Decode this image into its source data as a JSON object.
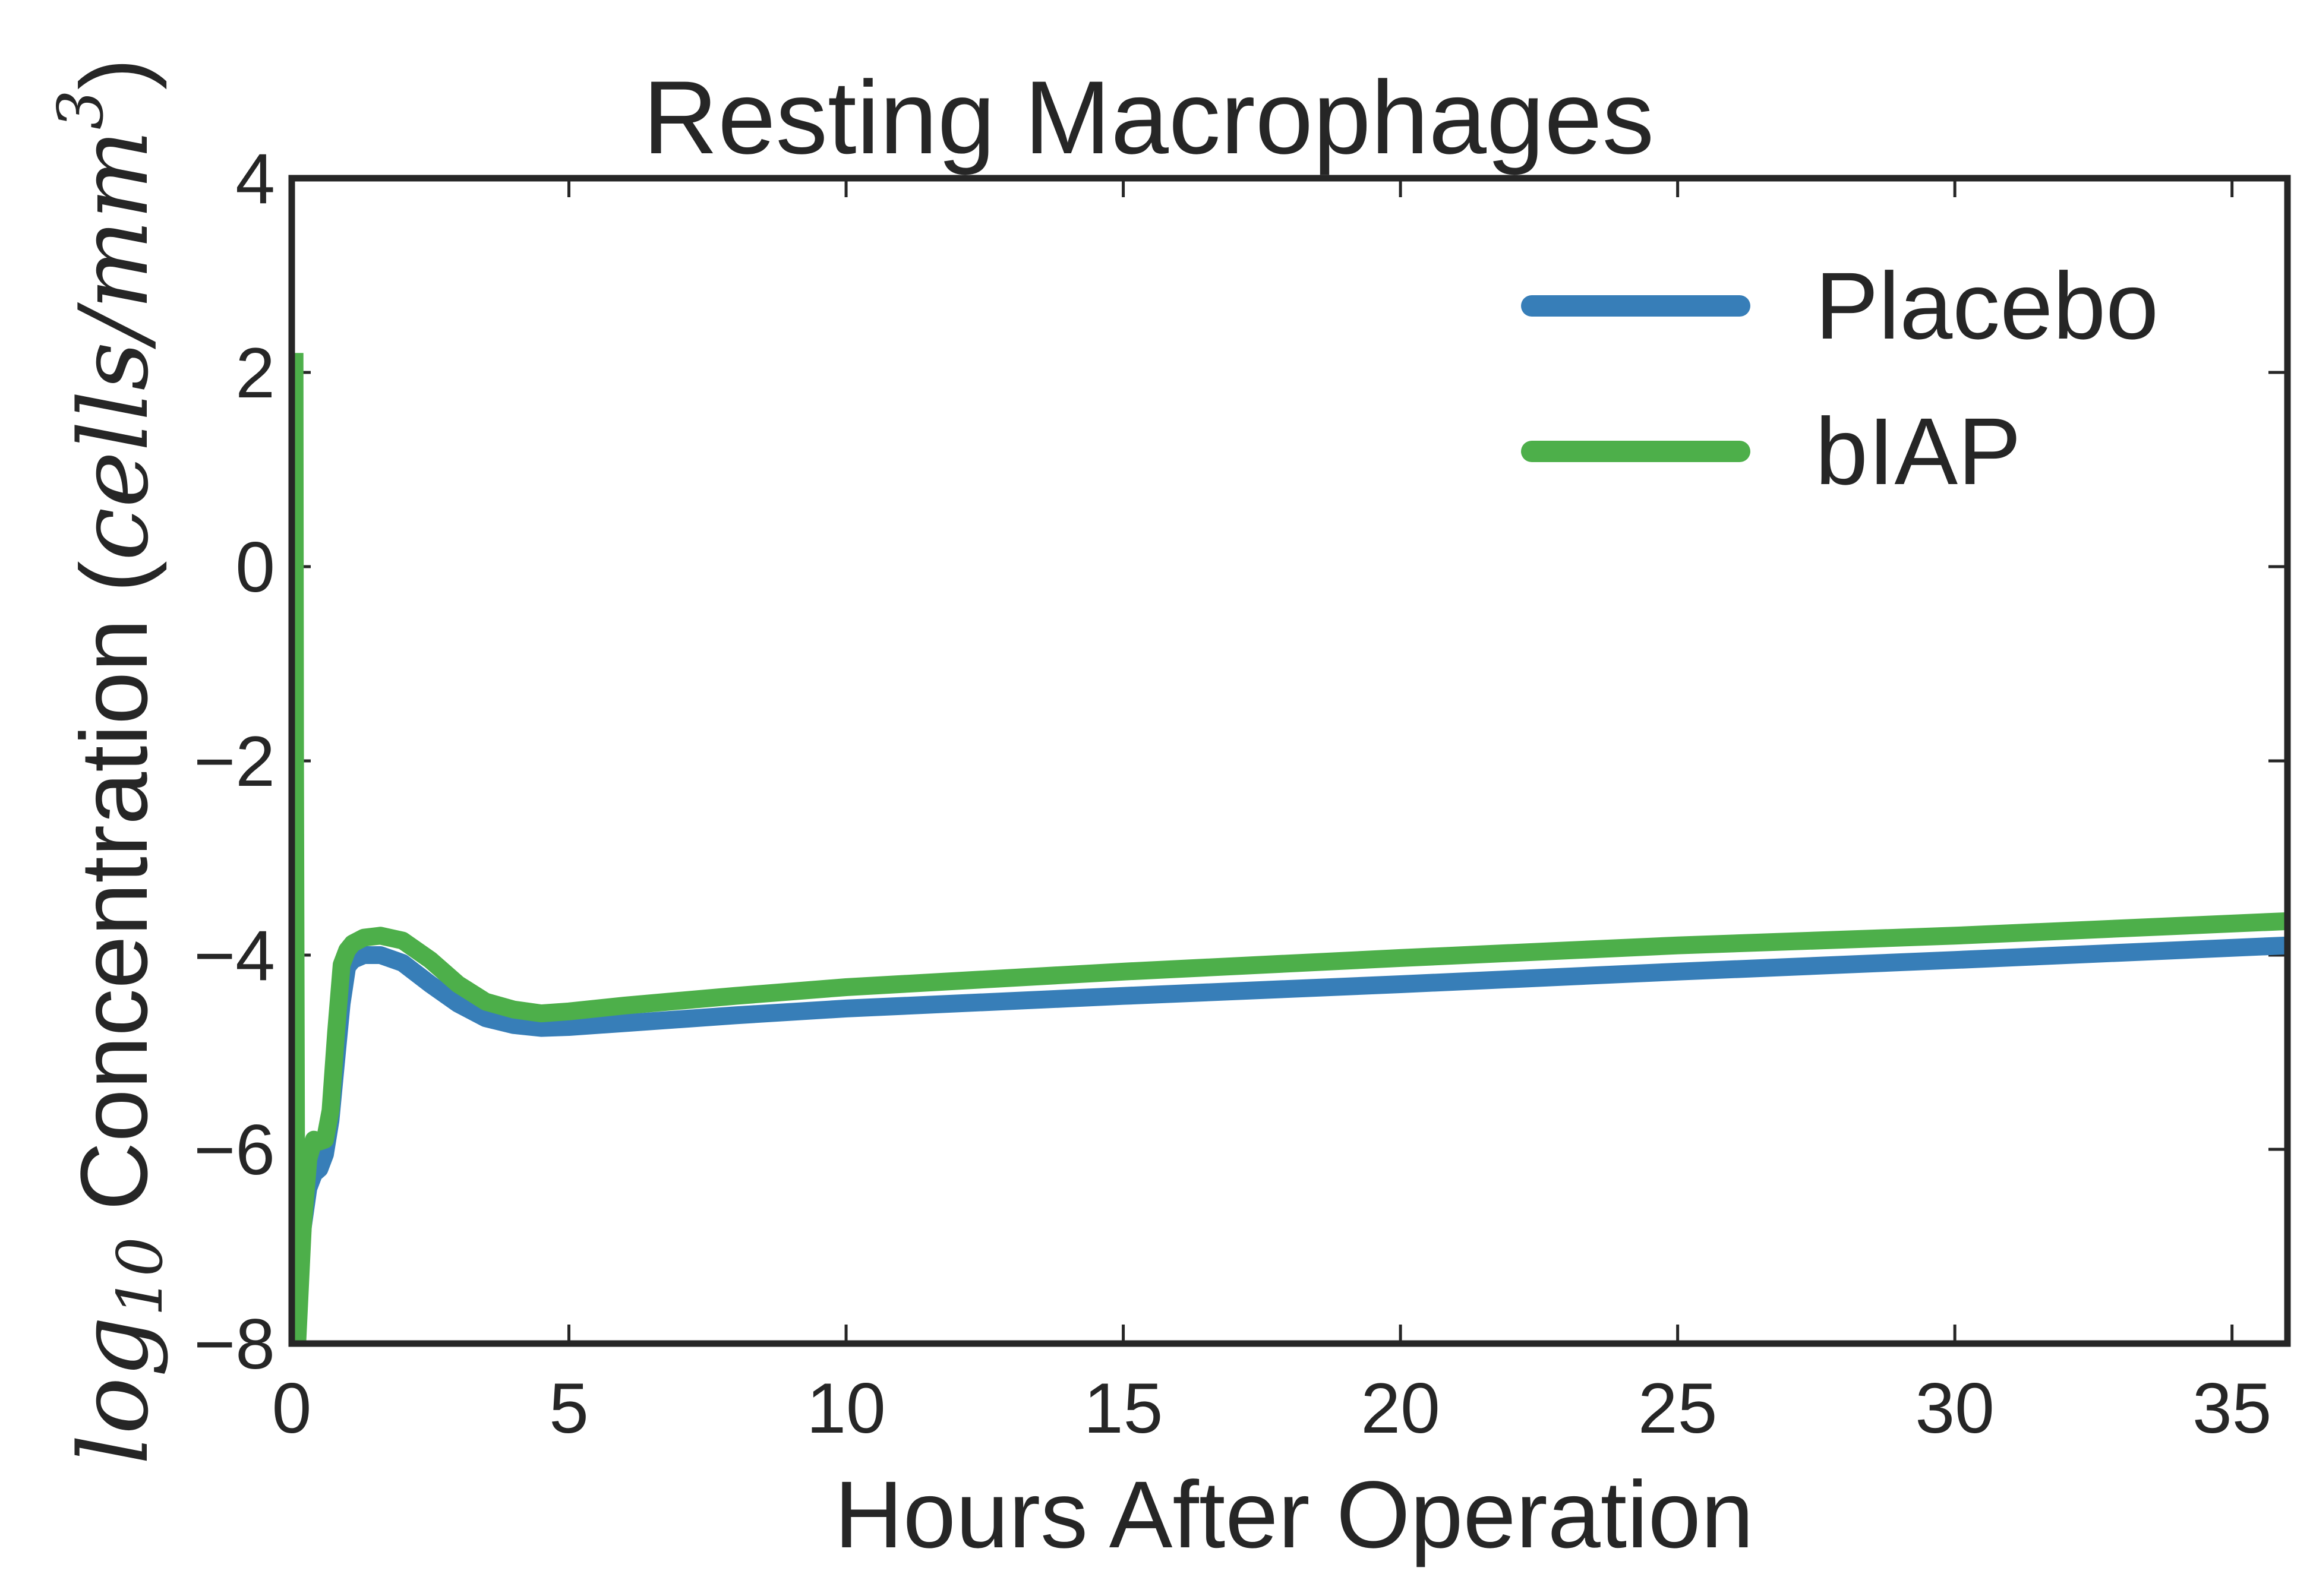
{
  "chart_data": {
    "type": "line",
    "title": "Resting Macrophages",
    "xlabel": "Hours After Operation",
    "ylabel": {
      "log_base": "log",
      "log_sub": "10",
      "text": " Concentration (",
      "unit_main": "cells/mm",
      "unit_sup": "3",
      "close": ")"
    },
    "xlim": [
      0,
      36
    ],
    "ylim": [
      -8,
      4
    ],
    "xticks": [
      "0",
      "5",
      "10",
      "15",
      "20",
      "25",
      "30",
      "35"
    ],
    "yticks": [
      "4",
      "2",
      "0",
      "−2",
      "−4",
      "−6",
      "−8"
    ],
    "legend_position": "top-right",
    "grid": false,
    "series": [
      {
        "name": "Placebo",
        "color": "#377eb8",
        "x": [
          0.05,
          0.1,
          0.2,
          0.3,
          0.4,
          0.5,
          0.6,
          0.7,
          0.8,
          0.9,
          1.0,
          1.1,
          1.3,
          1.6,
          2.0,
          2.5,
          3.0,
          3.5,
          4.0,
          4.5,
          5.0,
          6.0,
          8.0,
          10.0,
          15.0,
          20.0,
          25.0,
          30.0,
          36.0
        ],
        "y": [
          -8.0,
          -7.5,
          -6.8,
          -6.4,
          -6.25,
          -6.2,
          -6.05,
          -5.7,
          -5.1,
          -4.5,
          -4.12,
          -4.05,
          -4.0,
          -4.0,
          -4.08,
          -4.3,
          -4.5,
          -4.65,
          -4.72,
          -4.75,
          -4.74,
          -4.7,
          -4.62,
          -4.55,
          -4.42,
          -4.3,
          -4.17,
          -4.05,
          -3.9
        ]
      },
      {
        "name": "bIAP",
        "color": "#4daf4a",
        "x": [
          0.05,
          0.06,
          0.08,
          0.1,
          0.2,
          0.3,
          0.4,
          0.5,
          0.6,
          0.7,
          0.8,
          0.9,
          1.0,
          1.1,
          1.3,
          1.6,
          2.0,
          2.5,
          3.0,
          3.5,
          4.0,
          4.5,
          5.0,
          6.0,
          8.0,
          10.0,
          15.0,
          20.0,
          25.0,
          30.0,
          36.0
        ],
        "y": [
          2.2,
          -2.0,
          -6.5,
          -8.0,
          -6.8,
          -6.1,
          -5.9,
          -5.92,
          -5.9,
          -5.6,
          -4.8,
          -4.1,
          -3.95,
          -3.88,
          -3.82,
          -3.8,
          -3.85,
          -4.05,
          -4.3,
          -4.48,
          -4.56,
          -4.6,
          -4.58,
          -4.52,
          -4.42,
          -4.33,
          -4.17,
          -4.03,
          -3.9,
          -3.8,
          -3.65
        ]
      }
    ]
  }
}
